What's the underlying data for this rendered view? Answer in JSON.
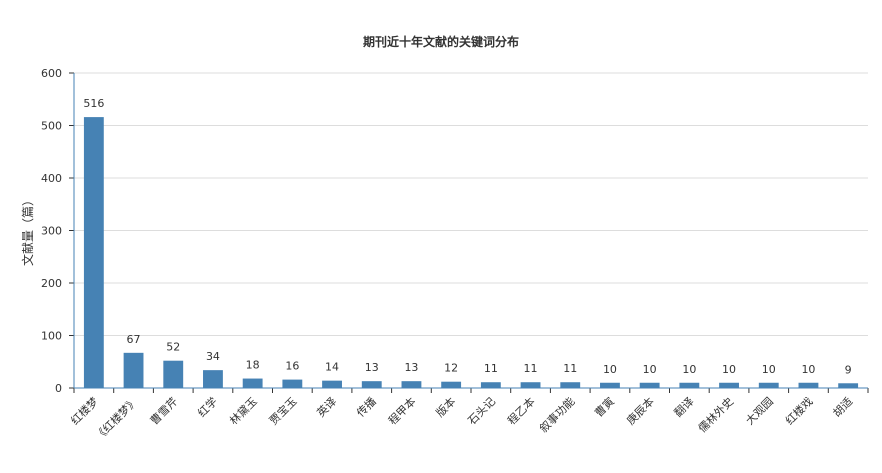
{
  "chart_data": {
    "type": "bar",
    "title": "期刊近十年文献的关键词分布",
    "xlabel": "",
    "ylabel": "文献量（篇）",
    "ylim": [
      0,
      600
    ],
    "yticks": [
      0,
      100,
      200,
      300,
      400,
      500,
      600
    ],
    "grid": true,
    "bar_color": "#4682b4",
    "categories": [
      "红楼梦",
      "《红楼梦》",
      "曹雪芹",
      "红学",
      "林黛玉",
      "贾宝玉",
      "英译",
      "传播",
      "程甲本",
      "版本",
      "石头记",
      "程乙本",
      "叙事功能",
      "曹寅",
      "庚辰本",
      "翻译",
      "儒林外史",
      "大观园",
      "红楼戏",
      "胡适"
    ],
    "values": [
      516,
      67,
      52,
      34,
      18,
      16,
      14,
      13,
      13,
      12,
      11,
      11,
      11,
      10,
      10,
      10,
      10,
      10,
      10,
      9
    ]
  }
}
